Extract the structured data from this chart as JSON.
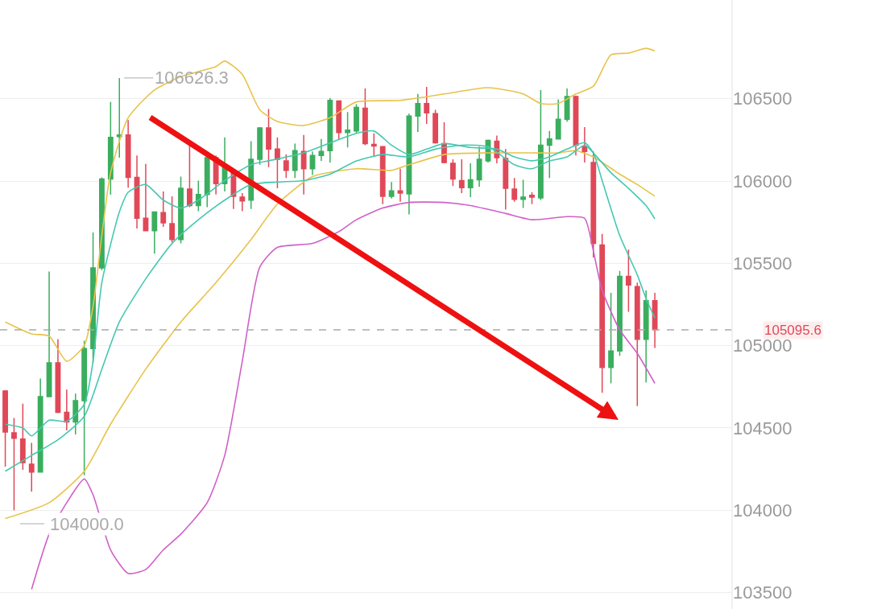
{
  "chart_data": {
    "type": "candlestick",
    "categories": [
      null,
      null,
      null,
      null,
      null,
      null,
      null,
      null,
      null,
      null,
      null,
      null,
      null,
      null,
      null,
      null,
      null,
      null,
      null,
      null,
      null,
      null,
      null,
      null,
      null,
      null,
      null,
      null,
      null,
      null,
      null,
      null,
      null,
      null,
      null,
      null,
      null,
      null,
      null,
      null,
      null,
      null,
      null,
      null,
      null,
      null,
      null,
      null,
      null,
      null,
      null,
      null,
      null,
      null,
      null,
      null,
      null,
      null,
      null,
      null,
      null,
      null,
      null,
      null,
      null,
      null,
      null,
      null,
      null,
      null,
      null,
      null,
      null,
      null,
      null
    ],
    "ohlc": [
      [
        104724,
        104730,
        104265,
        104475
      ],
      [
        104470,
        104561,
        104000,
        104437
      ],
      [
        104432,
        104647,
        104246,
        104289
      ],
      [
        104280,
        104409,
        104113,
        104232
      ],
      [
        104232,
        104800,
        104232,
        104690
      ],
      [
        104690,
        105450,
        104690,
        104896
      ],
      [
        104896,
        105039,
        104590,
        104595
      ],
      [
        104595,
        104733,
        104485,
        104537
      ],
      [
        104537,
        104709,
        104461,
        104666
      ],
      [
        104666,
        105030,
        104213,
        104982
      ],
      [
        104982,
        105688,
        104896,
        105473
      ],
      [
        105473,
        106022,
        105459,
        106013
      ],
      [
        106013,
        106481,
        105917,
        106266
      ],
      [
        106270,
        106626.3,
        106142,
        106280
      ],
      [
        106280,
        106371,
        105960,
        106022
      ],
      [
        106022,
        106156,
        105712,
        105774
      ],
      [
        105774,
        106104,
        105698,
        105698
      ],
      [
        105698,
        105812,
        105559,
        105812
      ],
      [
        105808,
        105937,
        105722,
        105746
      ],
      [
        105741,
        105908,
        105626,
        105645
      ],
      [
        105645,
        106027,
        105621,
        105956
      ],
      [
        105951,
        106223,
        105841,
        105851
      ],
      [
        105851,
        106003,
        105817,
        105918
      ],
      [
        105918,
        106156,
        105841,
        106142
      ],
      [
        106142,
        106156,
        105918,
        105984
      ],
      [
        105984,
        106266,
        105937,
        106089
      ],
      [
        106056,
        106056,
        105831,
        105908
      ],
      [
        105903,
        105927,
        105817,
        105879
      ],
      [
        105884,
        106242,
        105831,
        106132
      ],
      [
        106132,
        106328,
        106099,
        106323
      ],
      [
        106323,
        106438,
        106084,
        106194
      ],
      [
        106194,
        106266,
        105956,
        106132
      ],
      [
        106122,
        106161,
        106018,
        106065
      ],
      [
        106065,
        106228,
        106018,
        106185
      ],
      [
        106180,
        106280,
        105918,
        106075
      ],
      [
        106075,
        106180,
        106037,
        106156
      ],
      [
        106156,
        106256,
        106122,
        106180
      ],
      [
        106185,
        106505,
        106113,
        106490
      ],
      [
        106486,
        106486,
        106252,
        106295
      ],
      [
        106295,
        106419,
        106204,
        106309
      ],
      [
        106304,
        106467,
        106290,
        106447
      ],
      [
        106443,
        106562,
        106218,
        106228
      ],
      [
        106223,
        106290,
        106147,
        106213
      ],
      [
        106209,
        106209,
        105860,
        105908
      ],
      [
        105908,
        105994,
        105894,
        105941
      ],
      [
        105941,
        106075,
        105874,
        105927
      ],
      [
        105922,
        106409,
        105798,
        106395
      ],
      [
        106395,
        106529,
        106299,
        106471
      ],
      [
        106471,
        106572,
        106347,
        106414
      ],
      [
        106409,
        106433,
        106228,
        106233
      ],
      [
        106228,
        106357,
        106108,
        106113
      ],
      [
        106108,
        106132,
        105970,
        106013
      ],
      [
        106003,
        106132,
        105927,
        105960
      ],
      [
        105960,
        106108,
        105903,
        106008
      ],
      [
        106008,
        106209,
        105965,
        106132
      ],
      [
        106122,
        106252,
        106113,
        106247
      ],
      [
        106242,
        106276,
        106108,
        106142
      ],
      [
        106137,
        106194,
        105827,
        105956
      ],
      [
        105951,
        106018,
        105874,
        105889
      ],
      [
        105889,
        106008,
        105836,
        105903
      ],
      [
        105913,
        105932,
        105860,
        105903
      ],
      [
        105898,
        106553,
        105884,
        106218
      ],
      [
        106218,
        106304,
        106018,
        106256
      ],
      [
        106256,
        106495,
        106252,
        106376
      ],
      [
        106376,
        106562,
        106361,
        106514
      ],
      [
        106514,
        106519,
        106156,
        106218
      ],
      [
        106209,
        106328,
        106113,
        106180
      ],
      [
        106113,
        106180,
        105535,
        105621
      ],
      [
        105612,
        105679,
        104714,
        104867
      ],
      [
        104867,
        105321,
        104771,
        104968
      ],
      [
        104968,
        105454,
        104939,
        105421
      ],
      [
        105421,
        105583,
        105206,
        105368
      ],
      [
        105359,
        105383,
        104633,
        105039
      ],
      [
        105039,
        105335,
        104776,
        105273
      ],
      [
        105273,
        105321,
        104986,
        105095.6
      ]
    ],
    "colors": [
      "#e04858",
      "#e04858",
      "#e04858",
      "#e04858",
      "#3aae5e",
      "#3aae5e",
      "#e04858",
      "#e04858",
      "#3aae5e",
      "#3aae5e",
      "#3aae5e",
      "#3aae5e",
      "#3aae5e",
      "#3aae5e",
      "#e04858",
      "#e04858",
      "#e04858",
      "#3aae5e",
      "#e04858",
      "#e04858",
      "#3aae5e",
      "#e04858",
      "#3aae5e",
      "#3aae5e",
      "#e04858",
      "#3aae5e",
      "#e04858",
      "#e04858",
      "#3aae5e",
      "#3aae5e",
      "#e04858",
      "#e04858",
      "#e04858",
      "#3aae5e",
      "#e04858",
      "#3aae5e",
      "#3aae5e",
      "#3aae5e",
      "#e04858",
      "#3aae5e",
      "#3aae5e",
      "#e04858",
      "#e04858",
      "#e04858",
      "#3aae5e",
      "#e04858",
      "#3aae5e",
      "#3aae5e",
      "#e04858",
      "#e04858",
      "#e04858",
      "#e04858",
      "#e04858",
      "#3aae5e",
      "#3aae5e",
      "#3aae5e",
      "#e04858",
      "#e04858",
      "#e04858",
      "#3aae5e",
      "#e04858",
      "#3aae5e",
      "#3aae5e",
      "#3aae5e",
      "#3aae5e",
      "#e04858",
      "#e04858",
      "#e04858",
      "#e04858",
      "#3aae5e",
      "#3aae5e",
      "#e04858",
      "#e04858",
      "#3aae5e",
      "#e04858"
    ],
    "series": [
      {
        "type": "line",
        "color": "#e8c34a",
        "values": [
          105144,
          null,
          null,
          105072,
          null,
          105058,
          null,
          104905,
          null,
          105001,
          105239,
          105669,
          106051,
          null,
          106385,
          null,
          null,
          106553,
          null,
          null,
          106634,
          null,
          null,
          null,
          106696,
          106729,
          null,
          106648,
          null,
          106433,
          null,
          106362,
          null,
          null,
          106338,
          null,
          null,
          106385,
          null,
          null,
          106481,
          null,
          null,
          null,
          null,
          106490,
          null,
          null,
          null,
          null,
          106529,
          null,
          null,
          null,
          null,
          106567,
          null,
          null,
          null,
          106529,
          null,
          106471,
          null,
          106471,
          null,
          106529,
          null,
          106576,
          null,
          106767,
          null,
          106777,
          null,
          106806,
          106791
        ]
      },
      {
        "type": "line",
        "color": "#e8c34a",
        "values": [
          103950,
          null,
          null,
          null,
          null,
          104046,
          null,
          null,
          null,
          104237,
          null,
          null,
          104523,
          null,
          null,
          null,
          104857,
          null,
          null,
          null,
          105144,
          null,
          null,
          null,
          105383,
          null,
          null,
          null,
          105645,
          null,
          null,
          105860,
          null,
          null,
          null,
          106027,
          null,
          null,
          null,
          null,
          106075,
          null,
          null,
          null,
          106065,
          null,
          106099,
          null,
          null,
          null,
          106161,
          null,
          null,
          null,
          null,
          106171,
          null,
          null,
          null,
          null,
          106171,
          null,
          null,
          106171,
          null,
          106185,
          null,
          106147,
          null,
          null,
          106042,
          null,
          105979,
          null,
          105908
        ]
      },
      {
        "type": "line",
        "color": "#45c8b0",
        "values": [
          104523,
          null,
          104500,
          104452,
          null,
          104547,
          null,
          104540,
          null,
          104643,
          104905,
          105383,
          null,
          105812,
          105932,
          null,
          105979,
          null,
          105884,
          null,
          105836,
          null,
          105884,
          null,
          null,
          106003,
          null,
          null,
          106099,
          null,
          106123,
          null,
          null,
          null,
          106171,
          null,
          null,
          null,
          106252,
          null,
          106290,
          null,
          106304,
          null,
          106218,
          null,
          106161,
          null,
          106194,
          null,
          106228,
          null,
          null,
          106204,
          null,
          null,
          106194,
          null,
          106147,
          null,
          106123,
          null,
          106147,
          null,
          106194,
          null,
          106233,
          106171,
          106003,
          null,
          105669,
          null,
          105430,
          105287,
          105168
        ]
      },
      {
        "type": "line",
        "color": "#45c8b0",
        "values": [
          104237,
          null,
          null,
          104333,
          null,
          null,
          104428,
          null,
          null,
          104571,
          null,
          104857,
          null,
          105144,
          null,
          null,
          105406,
          null,
          null,
          105621,
          null,
          null,
          105765,
          null,
          null,
          105884,
          null,
          null,
          105979,
          null,
          null,
          105994,
          null,
          null,
          106003,
          null,
          null,
          106042,
          null,
          null,
          106122,
          null,
          null,
          106161,
          null,
          null,
          106147,
          null,
          null,
          106194,
          null,
          null,
          106218,
          null,
          null,
          106209,
          null,
          null,
          106099,
          null,
          106075,
          null,
          106122,
          null,
          106147,
          null,
          106218,
          106171,
          null,
          106051,
          null,
          105956,
          null,
          105851,
          105770
        ]
      },
      {
        "type": "line",
        "color": "#d060c8",
        "values": [
          null,
          null,
          null,
          103520,
          null,
          103855,
          null,
          104046,
          null,
          104190,
          104094,
          null,
          103759,
          null,
          103616,
          null,
          103640,
          null,
          103759,
          null,
          103855,
          null,
          null,
          104046,
          null,
          104333,
          null,
          104905,
          null,
          105478,
          null,
          105597,
          null,
          null,
          null,
          105621,
          null,
          null,
          105693,
          null,
          105765,
          null,
          null,
          105836,
          null,
          null,
          105870,
          null,
          null,
          null,
          105870,
          null,
          null,
          105851,
          null,
          null,
          null,
          105803,
          null,
          null,
          105765,
          null,
          null,
          null,
          105784,
          null,
          105774,
          105574,
          105335,
          null,
          105096,
          null,
          104953,
          null,
          104771
        ]
      }
    ],
    "ylim": [
      103400,
      107100
    ],
    "yticks": [
      103500,
      104000,
      104500,
      105000,
      105500,
      106000,
      106500
    ],
    "grid": "y",
    "tick_labels": "y",
    "ref_lines": [
      {
        "axis": "y",
        "value": 105095.6,
        "label": "105095.6",
        "line_style": "dashed"
      }
    ],
    "annotations": [
      {
        "text": "106626.3",
        "y": 106626.3
      },
      "104000.0"
    ]
  }
}
